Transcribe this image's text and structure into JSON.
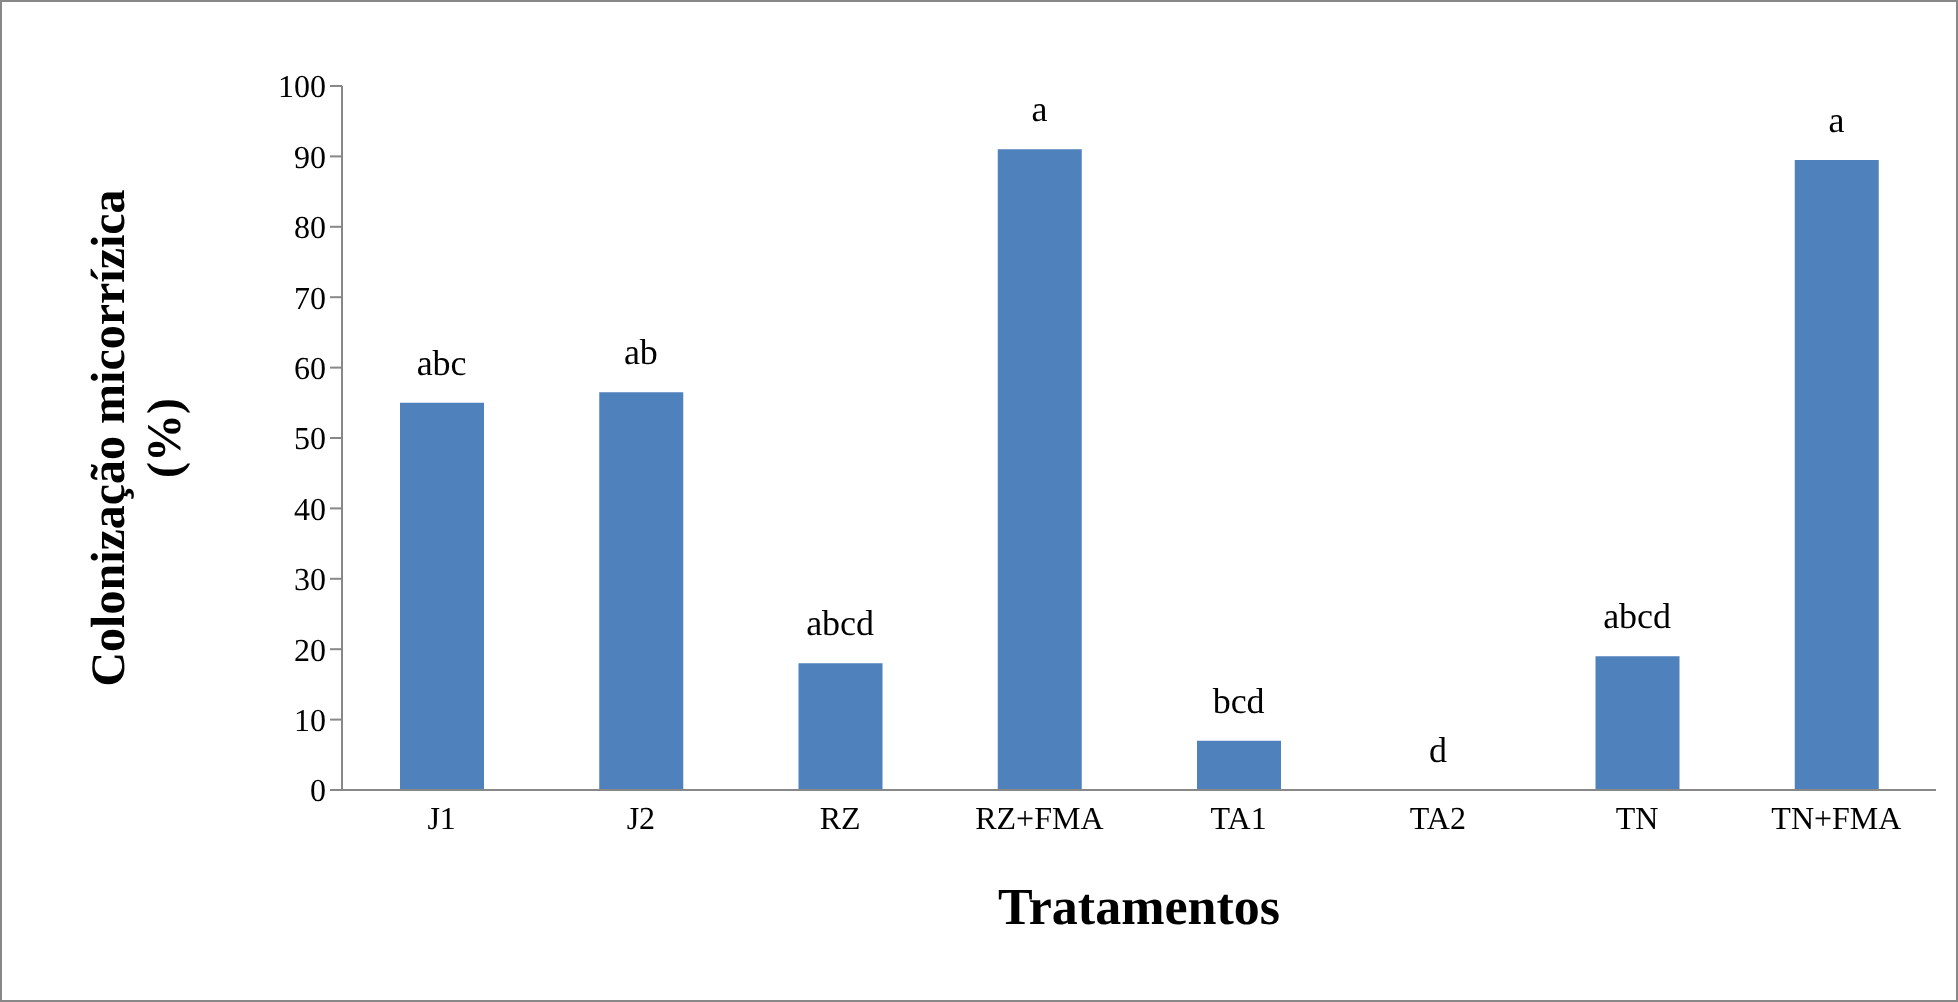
{
  "chart_data": {
    "type": "bar",
    "xlabel": "Tratamentos",
    "ylabel": "Colonização micorrízica (%)",
    "categories": [
      "J1",
      "J2",
      "RZ",
      "RZ+FMA",
      "TA1",
      "TA2",
      "TN",
      "TN+FMA"
    ],
    "values": [
      55,
      56.5,
      18,
      91,
      7,
      0,
      19,
      89.5
    ],
    "color": "#4f81bd",
    "ylim": [
      0,
      100
    ],
    "yticks": [
      0,
      10,
      20,
      30,
      40,
      50,
      60,
      70,
      80,
      90,
      100
    ],
    "grid": false,
    "legend": false,
    "annotations": [
      {
        "text": "abc",
        "x": "J1",
        "y": 55
      },
      {
        "text": "ab",
        "x": "J2",
        "y": 56.5
      },
      {
        "text": "abcd",
        "x": "RZ",
        "y": 18
      },
      {
        "text": "a",
        "x": "RZ+FMA",
        "y": 91
      },
      {
        "text": "bcd",
        "x": "TA1",
        "y": 7
      },
      {
        "text": "d",
        "x": "TA2",
        "y": 0
      },
      {
        "text": "abcd",
        "x": "TN",
        "y": 19
      },
      {
        "text": "a",
        "x": "TN+FMA",
        "y": 89.5
      }
    ]
  }
}
